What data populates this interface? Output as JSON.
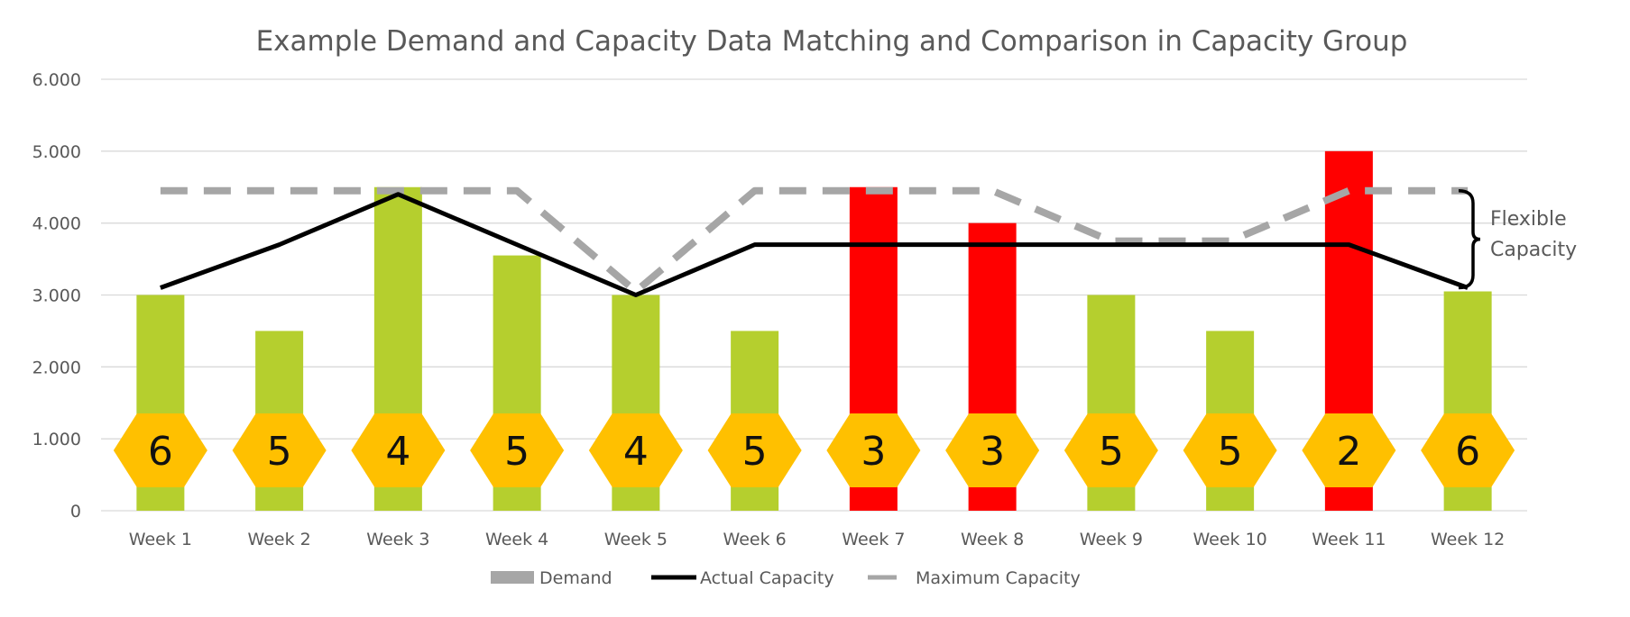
{
  "chart_data": {
    "type": "bar",
    "title": "Example Demand and Capacity Data Matching and Comparison in Capacity Group",
    "xlabel": "",
    "ylabel": "",
    "ylim": [
      0,
      6000
    ],
    "yticks": [
      0,
      1000,
      2000,
      3000,
      4000,
      5000,
      6000
    ],
    "ytick_labels": [
      "0",
      "1.000",
      "2.000",
      "3.000",
      "4.000",
      "5.000",
      "6.000"
    ],
    "grid": true,
    "legend_position": "bottom",
    "categories": [
      "Week 1",
      "Week 2",
      "Week 3",
      "Week 4",
      "Week 5",
      "Week 6",
      "Week 7",
      "Week 8",
      "Week 9",
      "Week 10",
      "Week 11",
      "Week 12"
    ],
    "series": [
      {
        "name": "Demand",
        "kind": "bar",
        "legend_color": "#a6a6a6",
        "values": [
          3000,
          2500,
          4500,
          3550,
          3000,
          2500,
          4500,
          4000,
          3000,
          2500,
          5000,
          3050
        ],
        "bar_colors": [
          "#b5cf2e",
          "#b5cf2e",
          "#b5cf2e",
          "#b5cf2e",
          "#b5cf2e",
          "#b5cf2e",
          "#ff0000",
          "#ff0000",
          "#b5cf2e",
          "#b5cf2e",
          "#ff0000",
          "#b5cf2e"
        ]
      },
      {
        "name": "Actual Capacity",
        "kind": "line",
        "color": "#000000",
        "values": [
          3100,
          3700,
          4400,
          3700,
          3000,
          3700,
          3700,
          3700,
          3700,
          3700,
          3700,
          3100
        ]
      },
      {
        "name": "Maximum Capacity",
        "kind": "dashed-line",
        "color": "#a6a6a6",
        "values": [
          4450,
          4450,
          4450,
          4450,
          3050,
          4450,
          4450,
          4450,
          3750,
          3750,
          4450,
          4450
        ]
      }
    ],
    "hexagon_labels": [
      "6",
      "5",
      "4",
      "5",
      "4",
      "5",
      "3",
      "3",
      "5",
      "5",
      "2",
      "6"
    ],
    "hexagon_color": "#ffc000",
    "annotation": {
      "lines": [
        "Flexible",
        "Capacity"
      ],
      "range": [
        3100,
        4450
      ]
    }
  }
}
